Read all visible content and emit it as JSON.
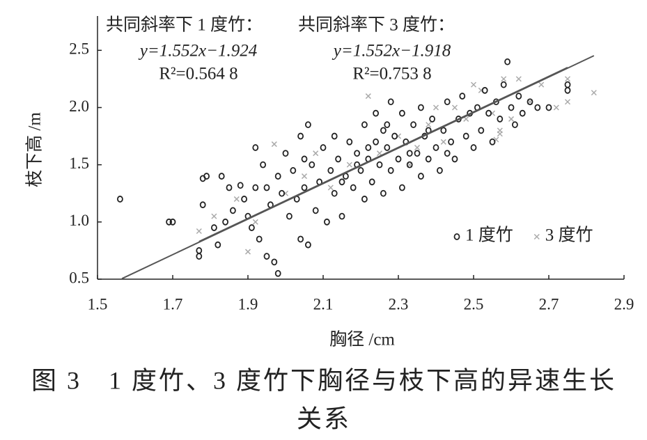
{
  "chart_data": {
    "type": "scatter",
    "x_label": "胸径 /cm",
    "y_label": "枝下高 /m",
    "caption": [
      "图 3　1 度竹、3 度竹下胸径与枝下高的异速生长",
      "关系"
    ],
    "annotations": [
      {
        "title": "共同斜率下 1 度竹：",
        "equation": "y=1.552x−1.924",
        "r2": "R²=0.564 8"
      },
      {
        "title": "共同斜率下 3 度竹：",
        "equation": "y=1.552x−1.918",
        "r2": "R²=0.753 8"
      }
    ],
    "xlim": [
      1.5,
      2.9
    ],
    "ylim": [
      0.5,
      2.8
    ],
    "xticks": [
      1.5,
      1.7,
      1.9,
      2.1,
      2.3,
      2.5,
      2.7,
      2.9
    ],
    "yticks": [
      0.5,
      {
        "value": 1,
        "label": "1.0"
      },
      1.5,
      {
        "value": 2,
        "label": "2.0"
      },
      2.5
    ],
    "grid": false,
    "legend": "lower-right",
    "fit_lines": [
      {
        "color": "#555555",
        "x": [
          1.565,
          2.82
        ],
        "y": [
          0.505,
          2.453
        ]
      },
      {
        "color": "#555555",
        "x": [
          1.77,
          2.75
        ],
        "y": [
          0.829,
          2.35
        ]
      }
    ],
    "series": [
      {
        "name": "1 度竹",
        "color": "#222222",
        "marker": "circle",
        "x": [
          1.56,
          1.69,
          1.7,
          1.77,
          1.77,
          1.78,
          1.78,
          1.79,
          1.81,
          1.82,
          1.83,
          1.84,
          1.85,
          1.86,
          1.88,
          1.89,
          1.9,
          1.91,
          1.92,
          1.92,
          1.93,
          1.94,
          1.95,
          1.96,
          1.97,
          1.98,
          1.98,
          1.99,
          2.0,
          2.01,
          2.02,
          2.03,
          2.04,
          2.04,
          2.05,
          2.06,
          2.06,
          2.07,
          2.08,
          2.09,
          2.1,
          2.11,
          2.12,
          2.13,
          2.13,
          2.14,
          2.15,
          2.16,
          2.17,
          2.18,
          2.19,
          2.2,
          2.21,
          2.21,
          2.22,
          2.23,
          2.24,
          2.24,
          2.25,
          2.26,
          2.27,
          2.27,
          2.28,
          2.29,
          2.3,
          2.31,
          2.31,
          2.32,
          2.33,
          2.34,
          2.35,
          2.36,
          2.36,
          2.37,
          2.38,
          2.39,
          2.4,
          2.41,
          2.42,
          2.43,
          2.44,
          2.45,
          2.46,
          2.47,
          2.48,
          2.49,
          2.5,
          2.51,
          2.52,
          2.53,
          2.54,
          2.55,
          2.56,
          2.57,
          2.58,
          2.59,
          2.6,
          2.61,
          2.62,
          2.63,
          2.65,
          2.67,
          2.7,
          2.75,
          2.75,
          2.22,
          2.26,
          2.33,
          2.38,
          2.15,
          2.19,
          2.05,
          1.95,
          2.28,
          2.43
        ],
        "values": [
          1.2,
          1.0,
          1.0,
          0.75,
          0.7,
          1.15,
          1.38,
          1.4,
          0.95,
          0.8,
          1.4,
          1.0,
          1.3,
          1.1,
          1.32,
          1.2,
          1.05,
          0.95,
          1.65,
          1.3,
          0.85,
          1.5,
          0.7,
          1.15,
          0.65,
          0.55,
          1.4,
          1.25,
          1.6,
          1.05,
          1.45,
          1.2,
          0.85,
          1.75,
          1.3,
          0.8,
          1.85,
          1.5,
          1.1,
          1.35,
          1.65,
          1.0,
          1.45,
          1.25,
          1.75,
          1.55,
          1.05,
          1.4,
          1.7,
          1.3,
          1.6,
          1.45,
          1.2,
          1.85,
          1.55,
          1.35,
          1.7,
          1.95,
          1.5,
          1.25,
          1.65,
          1.85,
          1.45,
          1.75,
          1.55,
          1.3,
          1.95,
          1.7,
          1.5,
          1.85,
          1.6,
          1.4,
          2.0,
          1.75,
          1.55,
          1.9,
          1.65,
          1.45,
          1.8,
          2.05,
          1.7,
          1.55,
          1.9,
          2.1,
          1.75,
          1.95,
          1.65,
          2.0,
          1.8,
          2.15,
          1.95,
          1.7,
          2.05,
          1.9,
          2.2,
          2.4,
          2.0,
          1.85,
          2.1,
          1.95,
          2.05,
          2.0,
          2.0,
          2.2,
          2.15,
          1.65,
          1.8,
          1.6,
          1.8,
          1.35,
          1.5,
          1.55,
          1.3,
          2.05,
          1.6
        ]
      },
      {
        "name": "3 度竹",
        "color": "#aaaaaa",
        "marker": "x",
        "x": [
          1.77,
          1.81,
          1.87,
          1.9,
          1.92,
          1.97,
          2.0,
          2.05,
          2.08,
          2.12,
          2.17,
          2.22,
          2.25,
          2.3,
          2.33,
          2.38,
          2.42,
          2.45,
          2.48,
          2.5,
          2.52,
          2.55,
          2.57,
          2.58,
          2.6,
          2.62,
          2.65,
          2.68,
          2.72,
          2.75,
          2.75,
          2.82,
          2.57,
          2.56,
          2.4,
          2.35
        ],
        "values": [
          0.92,
          1.05,
          1.2,
          0.74,
          1.0,
          1.68,
          1.25,
          1.4,
          1.6,
          1.3,
          1.5,
          2.1,
          1.6,
          1.75,
          1.5,
          1.85,
          1.7,
          2.0,
          1.9,
          2.2,
          2.15,
          1.95,
          1.8,
          2.25,
          1.9,
          2.25,
          2.05,
          2.2,
          2.0,
          2.05,
          2.25,
          2.13,
          1.77,
          1.72,
          2.0,
          1.65
        ]
      }
    ]
  }
}
